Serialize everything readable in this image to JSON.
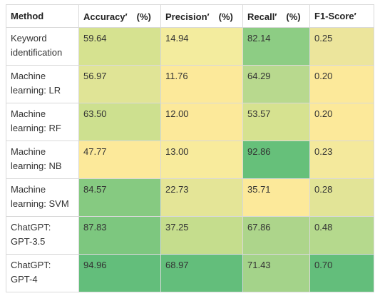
{
  "table": {
    "headers": [
      "Method",
      "Accuracy′　(%)",
      "Precision′　(%)",
      "Recall′　(%)",
      "F1-Score′"
    ],
    "rows": [
      {
        "method": [
          "Keyword",
          "identification"
        ],
        "cells": [
          "59.64",
          "14.94",
          "82.14",
          "0.25"
        ],
        "colors": [
          "#d6e290",
          "#f3ec9e",
          "#8dcd84",
          "#ece59c"
        ]
      },
      {
        "method": [
          "Machine",
          "learning: LR"
        ],
        "cells": [
          "56.97",
          "11.76",
          "64.29",
          "0.20"
        ],
        "colors": [
          "#e0e496",
          "#fce99a",
          "#b8d98e",
          "#fce99a"
        ]
      },
      {
        "method": [
          "Machine",
          "learning: RF"
        ],
        "cells": [
          "63.50",
          "12.00",
          "53.57",
          "0.20"
        ],
        "colors": [
          "#cde08f",
          "#fce99a",
          "#d6e290",
          "#fce99a"
        ]
      },
      {
        "method": [
          "Machine",
          "learning: NB"
        ],
        "cells": [
          "47.77",
          "13.00",
          "92.86",
          "0.23"
        ],
        "colors": [
          "#fce99a",
          "#f8eb9c",
          "#66c07a",
          "#f4e99c"
        ]
      },
      {
        "method": [
          "Machine",
          "learning: SVM"
        ],
        "cells": [
          "84.57",
          "22.73",
          "35.71",
          "0.28"
        ],
        "colors": [
          "#86ca81",
          "#e4e597",
          "#fce99a",
          "#e2e497"
        ]
      },
      {
        "method": [
          "ChatGPT:",
          "GPT-3.5"
        ],
        "cells": [
          "87.83",
          "37.25",
          "67.86",
          "0.48"
        ],
        "colors": [
          "#7dc77f",
          "#c5dd8d",
          "#add58b",
          "#b5d98d"
        ]
      },
      {
        "method": [
          "ChatGPT:",
          "GPT-4"
        ],
        "cells": [
          "94.96",
          "68.97",
          "71.43",
          "0.70"
        ],
        "colors": [
          "#63be7b",
          "#63be7b",
          "#a4d38a",
          "#63be7b"
        ]
      }
    ]
  }
}
